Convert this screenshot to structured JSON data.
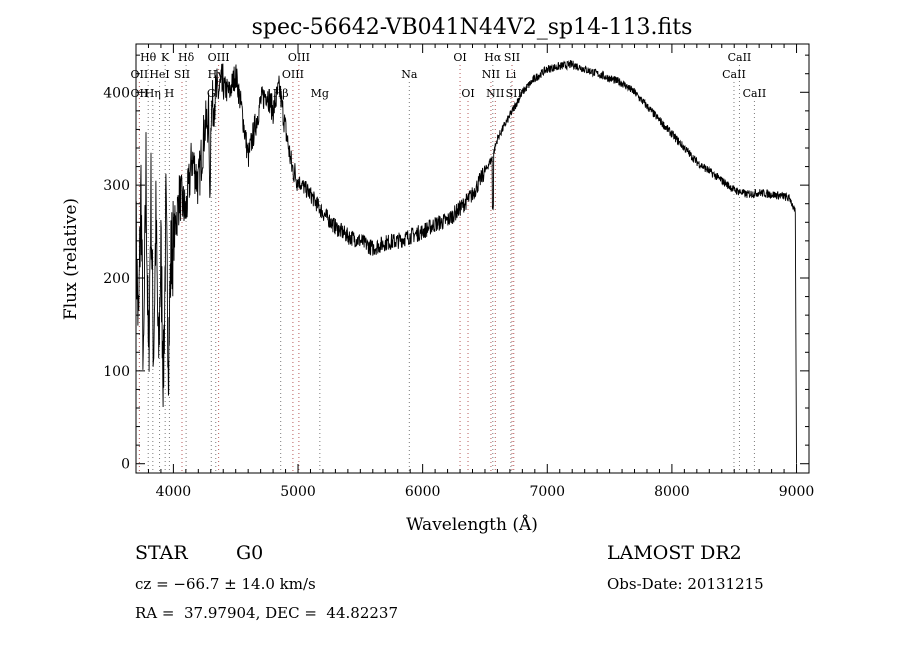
{
  "chart_data": {
    "type": "line",
    "title": "spec-56642-VB041N44V2_sp14-113.fits",
    "xlabel": "Wavelength (Å)",
    "ylabel": "Flux (relative)",
    "xlim": [
      3700,
      9100
    ],
    "ylim": [
      -10,
      452
    ],
    "x_ticks": [
      4000,
      5000,
      6000,
      7000,
      8000,
      9000
    ],
    "y_ticks": [
      0,
      100,
      200,
      300,
      400
    ],
    "grid": false,
    "line_color": "#000000",
    "marker_color_blue": "#7a7a7a",
    "marker_color_red": "#b85a5a",
    "series": [
      {
        "x": [
          3700,
          3720,
          3740,
          3760,
          3780,
          3800,
          3820,
          3840,
          3860,
          3880,
          3900,
          3920,
          3940,
          3960,
          3980,
          4000,
          4050,
          4100,
          4150,
          4200,
          4250,
          4300,
          4350,
          4400,
          4450,
          4500,
          4550,
          4600,
          4650,
          4700,
          4750,
          4800,
          4850,
          4900,
          4950,
          5000,
          5100,
          5200,
          5300,
          5400,
          5500,
          5600,
          5700,
          5800,
          5900,
          6000,
          6100,
          6200,
          6300,
          6400,
          6500,
          6560,
          6600,
          6700,
          6800,
          6900,
          7000,
          7100,
          7200,
          7300,
          7400,
          7500,
          7600,
          7700,
          7800,
          7900,
          8000,
          8100,
          8200,
          8300,
          8400,
          8500,
          8600,
          8700,
          8800,
          8900,
          8950,
          8990,
          9000
        ],
        "y": [
          250,
          140,
          300,
          90,
          320,
          100,
          290,
          120,
          260,
          110,
          230,
          90,
          270,
          120,
          220,
          240,
          290,
          270,
          330,
          300,
          360,
          380,
          400,
          405,
          400,
          420,
          380,
          330,
          360,
          390,
          400,
          380,
          405,
          360,
          320,
          305,
          290,
          270,
          255,
          245,
          240,
          232,
          238,
          240,
          245,
          250,
          258,
          262,
          275,
          290,
          315,
          330,
          350,
          375,
          400,
          415,
          425,
          428,
          430,
          425,
          420,
          415,
          410,
          400,
          385,
          370,
          355,
          340,
          325,
          315,
          305,
          295,
          290,
          292,
          290,
          288,
          285,
          270,
          0
        ]
      }
    ],
    "line_markers": [
      {
        "label": "Hθ",
        "wave": 3798,
        "row": 0,
        "color": "blue"
      },
      {
        "label": "K",
        "wave": 3934,
        "row": 0,
        "color": "blue"
      },
      {
        "label": "Hδ",
        "wave": 4102,
        "row": 0,
        "color": "blue"
      },
      {
        "label": "OII",
        "wave": 3727,
        "row": 1,
        "color": "red"
      },
      {
        "label": "HeI",
        "wave": 3889,
        "row": 1,
        "color": "blue"
      },
      {
        "label": "SII",
        "wave": 4069,
        "row": 1,
        "color": "red"
      },
      {
        "label": "OII",
        "wave": 3727,
        "row": 2,
        "color": "red"
      },
      {
        "label": "Hη",
        "wave": 3835,
        "row": 2,
        "color": "blue"
      },
      {
        "label": "H",
        "wave": 3968,
        "row": 2,
        "color": "blue"
      },
      {
        "label": "OIII",
        "wave": 4363,
        "row": 0,
        "color": "red"
      },
      {
        "label": "Hγ",
        "wave": 4340,
        "row": 1,
        "color": "blue"
      },
      {
        "label": "G",
        "wave": 4304,
        "row": 2,
        "color": "blue"
      },
      {
        "label": "OIII",
        "wave": 5007,
        "row": 0,
        "color": "red"
      },
      {
        "label": "OIII",
        "wave": 4959,
        "row": 1,
        "color": "red"
      },
      {
        "label": "Hβ",
        "wave": 4861,
        "row": 2,
        "color": "blue"
      },
      {
        "label": "Mg",
        "wave": 5175,
        "row": 2,
        "color": "blue"
      },
      {
        "label": "Na",
        "wave": 5893,
        "row": 1,
        "color": "blue"
      },
      {
        "label": "OI",
        "wave": 6300,
        "row": 0,
        "color": "red"
      },
      {
        "label": "OI",
        "wave": 6364,
        "row": 2,
        "color": "red"
      },
      {
        "label": "Hα",
        "wave": 6563,
        "row": 0,
        "color": "blue"
      },
      {
        "label": "SII",
        "wave": 6717,
        "row": 0,
        "color": "red"
      },
      {
        "label": "NII",
        "wave": 6548,
        "row": 1,
        "color": "red"
      },
      {
        "label": "Li",
        "wave": 6708,
        "row": 1,
        "color": "blue"
      },
      {
        "label": "NII",
        "wave": 6583,
        "row": 2,
        "color": "red"
      },
      {
        "label": "SII",
        "wave": 6731,
        "row": 2,
        "color": "red"
      },
      {
        "label": "CaII",
        "wave": 8542,
        "row": 0,
        "color": "blue"
      },
      {
        "label": "CaII",
        "wave": 8498,
        "row": 1,
        "color": "blue"
      },
      {
        "label": "CaII",
        "wave": 8662,
        "row": 2,
        "color": "blue"
      }
    ]
  },
  "info": {
    "object_class": "STAR",
    "subclass": "G0",
    "survey": "LAMOST DR2",
    "cz": "cz = −66.7 ± 14.0 km/s",
    "obs_date": "Obs-Date: 20131215",
    "coords": "RA =  37.97904, DEC =  44.82237"
  }
}
